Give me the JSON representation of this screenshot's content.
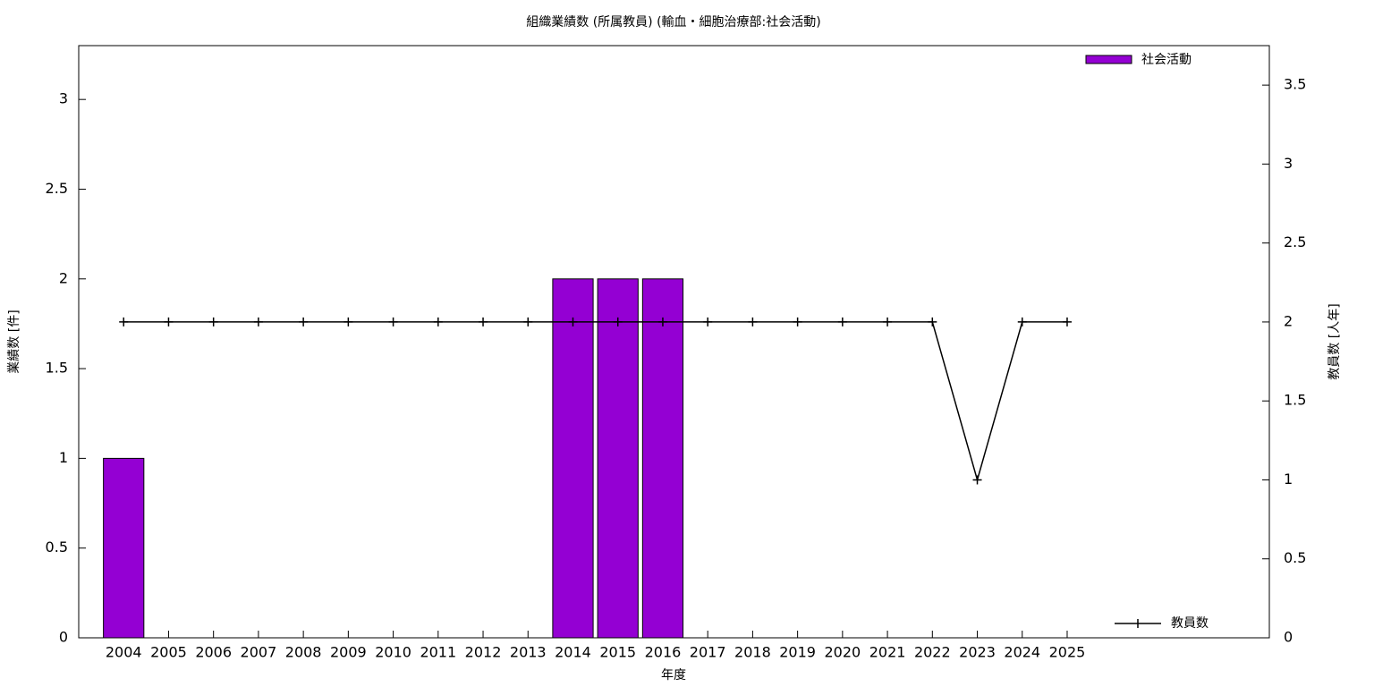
{
  "chart_data": {
    "type": "bar-line",
    "title": "組織業績数 (所属教員) (輸血・細胞治療部:社会活動)",
    "x_label": "年度",
    "y_label": "業績数 [件]",
    "y2_label": "教員数 [人年]",
    "categories": [
      "2004",
      "2005",
      "2006",
      "2007",
      "2008",
      "2009",
      "2010",
      "2011",
      "2012",
      "2013",
      "2014",
      "2015",
      "2016",
      "2017",
      "2018",
      "2019",
      "2020",
      "2021",
      "2022",
      "2023",
      "2024",
      "2025"
    ],
    "series": [
      {
        "name": "社会活動",
        "type": "bar",
        "color": "#9400d3",
        "values": [
          1,
          0,
          0,
          0,
          0,
          0,
          0,
          0,
          0,
          0,
          2,
          2,
          2,
          0,
          0,
          0,
          0,
          0,
          0,
          0,
          0,
          0
        ]
      },
      {
        "name": "教員数",
        "type": "line",
        "axis": "y2",
        "color": "#000000",
        "values": [
          2,
          2,
          2,
          2,
          2,
          2,
          2,
          2,
          2,
          2,
          2,
          2,
          2,
          2,
          2,
          2,
          2,
          2,
          2,
          1,
          2,
          2
        ]
      }
    ],
    "ylim": [
      0,
      3.3
    ],
    "yticks": [
      0,
      0.5,
      1,
      1.5,
      2,
      2.5,
      3
    ],
    "y2lim": [
      0,
      3.75
    ],
    "y2ticks": [
      0,
      0.5,
      1,
      1.5,
      2,
      2.5,
      3,
      3.5
    ]
  }
}
